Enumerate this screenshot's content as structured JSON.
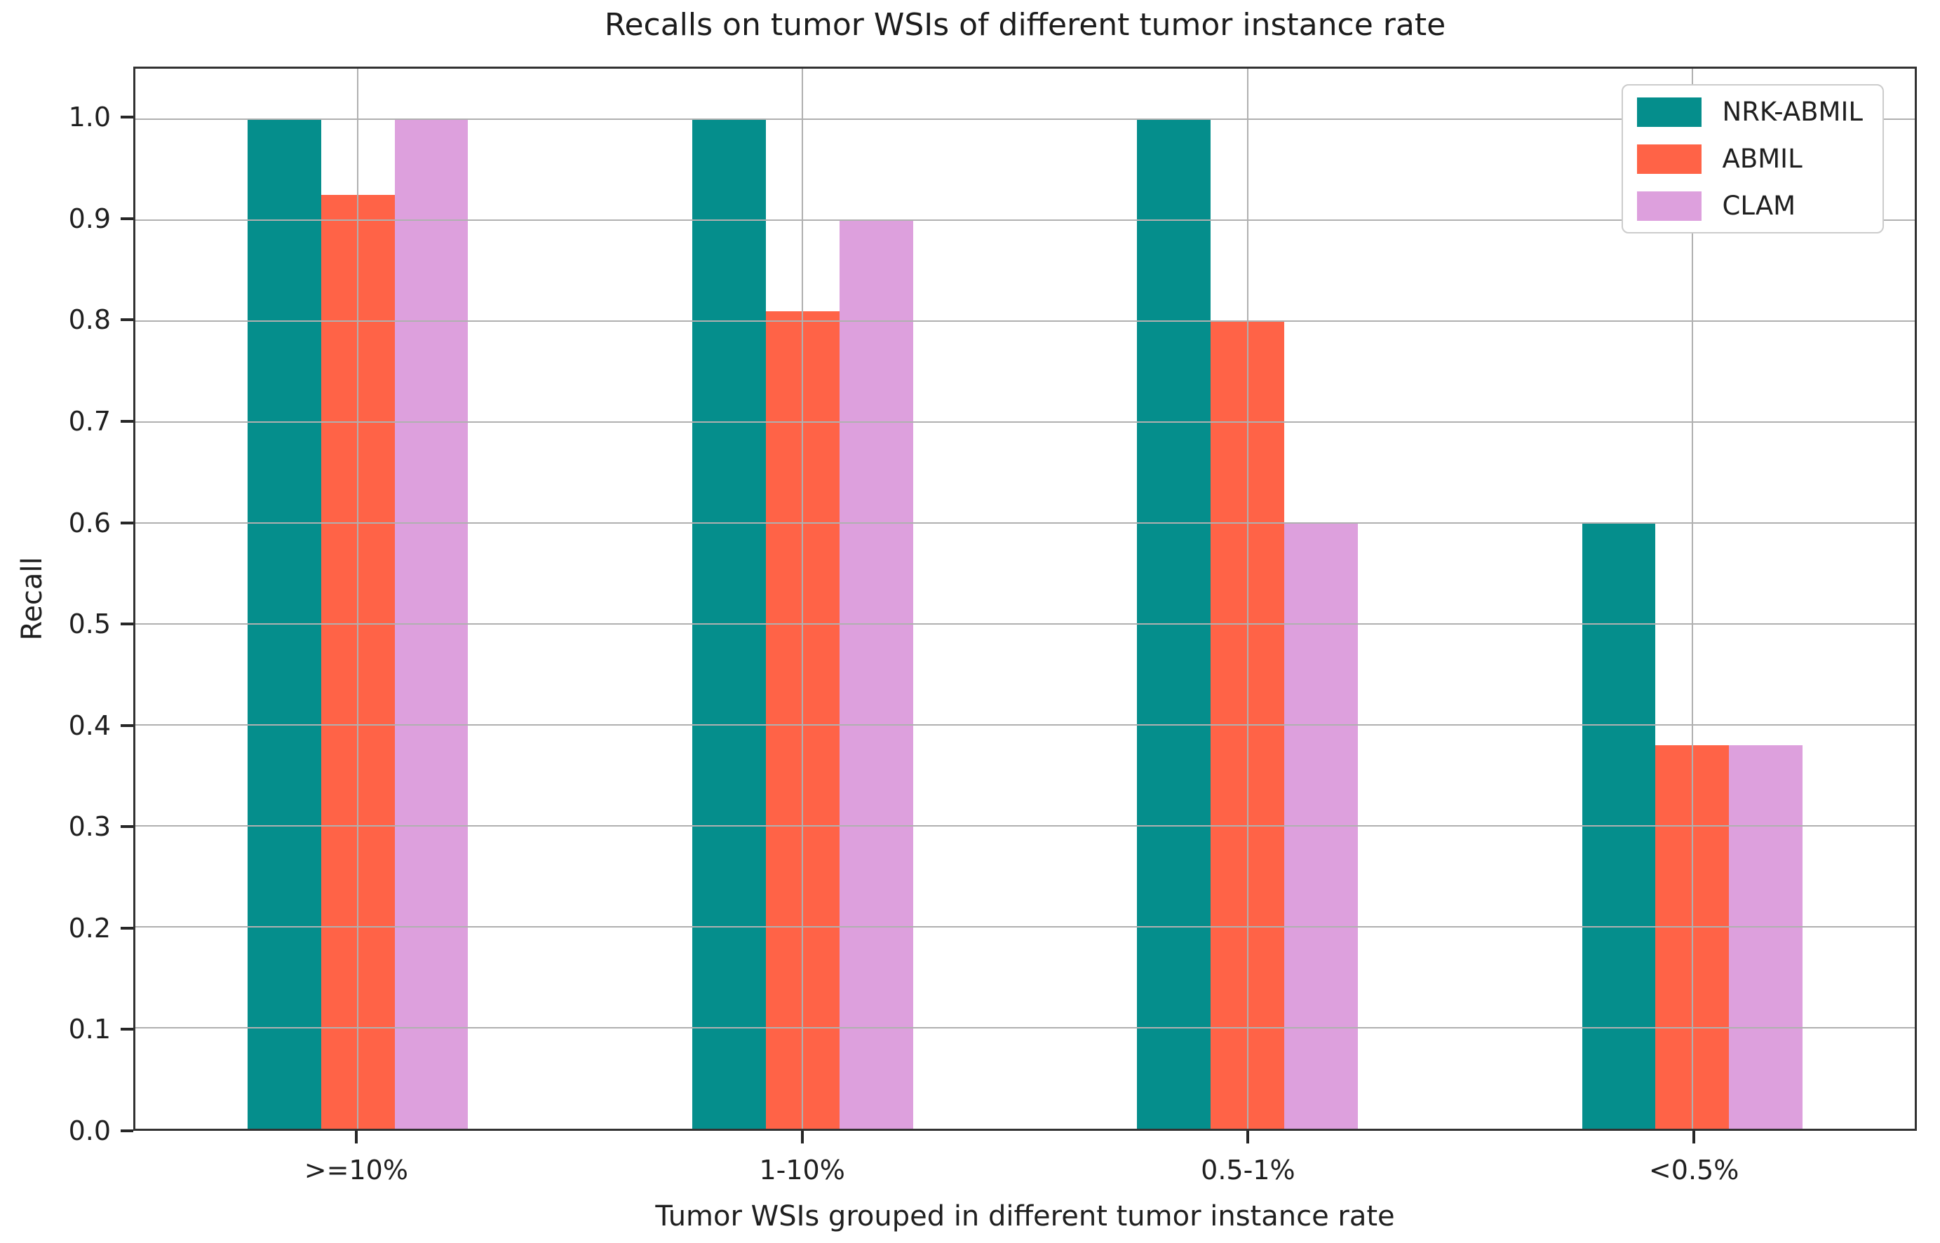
{
  "title": "Recalls on tumor WSIs of different tumor instance rate",
  "chart_data": {
    "type": "bar",
    "title": "Recalls on tumor WSIs of different tumor instance rate",
    "xlabel": "Tumor WSIs grouped in different tumor instance rate",
    "ylabel": "Recall",
    "categories": [
      ">=10%",
      "1-10%",
      "0.5-1%",
      "<0.5%"
    ],
    "series": [
      {
        "name": "NRK-ABMIL",
        "color": "#058e8c",
        "values": [
          1.0,
          1.0,
          1.0,
          0.6
        ]
      },
      {
        "name": "ABMIL",
        "color": "#ff6347",
        "values": [
          0.925,
          0.81,
          0.8,
          0.38
        ]
      },
      {
        "name": "CLAM",
        "color": "#dda0dd",
        "values": [
          1.0,
          0.9,
          0.6,
          0.38
        ]
      }
    ],
    "ylim": [
      0,
      1.05
    ],
    "yticks": [
      0.0,
      0.1,
      0.2,
      0.3,
      0.4,
      0.5,
      0.6,
      0.7,
      0.8,
      0.9,
      1.0
    ],
    "ytick_labels": [
      "0.0",
      "0.1",
      "0.2",
      "0.3",
      "0.4",
      "0.5",
      "0.6",
      "0.7",
      "0.8",
      "0.9",
      "1.0"
    ],
    "grid": true,
    "grid_over_bars": true,
    "bar_width_fraction": 0.0413,
    "legend_position": "upper right",
    "legend_entries": [
      "NRK-ABMIL",
      "ABMIL",
      "CLAM"
    ]
  },
  "colors": {
    "background": "#ffffff",
    "grid": "#b0b0b0",
    "spine": "#323232",
    "text": "#1f1f1f",
    "legend_border": "#cccccc"
  }
}
